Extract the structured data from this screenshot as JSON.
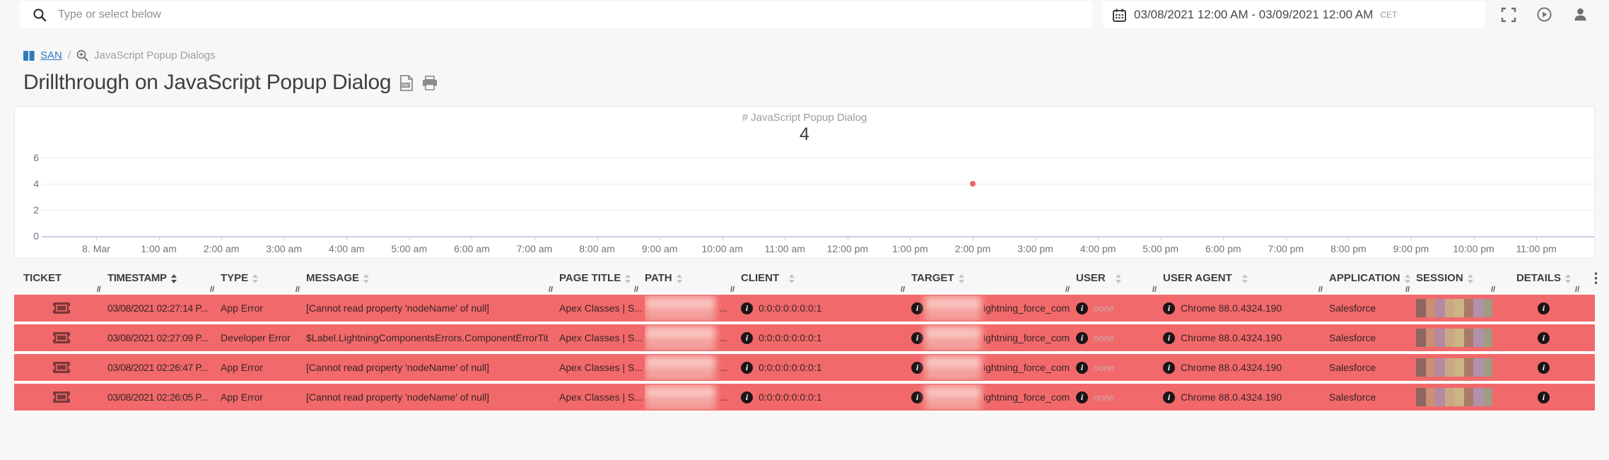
{
  "topbar": {
    "search_placeholder": "Type or select below",
    "date_range": "03/08/2021 12:00 AM - 03/09/2021 12:00 AM",
    "timezone": "CET"
  },
  "breadcrumb": {
    "dashboard_label": "SAN",
    "separator": "/",
    "current": "JavaScript Popup Dialogs"
  },
  "page": {
    "title": "Drillthrough on JavaScript Popup Dialog"
  },
  "chart_data": {
    "type": "scatter",
    "title": "# JavaScript Popup Dialog",
    "total": "4",
    "x_ticks": [
      "8. Mar",
      "1:00 am",
      "2:00 am",
      "3:00 am",
      "4:00 am",
      "5:00 am",
      "6:00 am",
      "7:00 am",
      "8:00 am",
      "9:00 am",
      "10:00 am",
      "11:00 am",
      "12:00 pm",
      "1:00 pm",
      "2:00 pm",
      "3:00 pm",
      "4:00 pm",
      "5:00 pm",
      "6:00 pm",
      "7:00 pm",
      "8:00 pm",
      "9:00 pm",
      "10:00 pm",
      "11:00 pm"
    ],
    "y_ticks": [
      6,
      4,
      2,
      0
    ],
    "ylim": [
      0,
      6
    ],
    "grid": true,
    "legend": "none",
    "points": [
      {
        "x": "2:00 pm",
        "y": 4
      }
    ],
    "point_color": "#f0605e"
  },
  "table": {
    "columns": [
      {
        "label": "TICKET",
        "sortable": false
      },
      {
        "label": "TIMESTAMP",
        "sortable": true,
        "sort": "desc"
      },
      {
        "label": "TYPE",
        "sortable": true
      },
      {
        "label": "MESSAGE",
        "sortable": true
      },
      {
        "label": "PAGE TITLE",
        "sortable": true
      },
      {
        "label": "PATH",
        "sortable": true
      },
      {
        "label": "CLIENT",
        "sortable": true
      },
      {
        "label": "TARGET",
        "sortable": true
      },
      {
        "label": "USER",
        "sortable": true
      },
      {
        "label": "USER AGENT",
        "sortable": true
      },
      {
        "label": "APPLICATION",
        "sortable": true
      },
      {
        "label": "SESSION",
        "sortable": true
      },
      {
        "label": "DETAILS",
        "sortable": true
      }
    ],
    "rows": [
      {
        "timestamp": "03/08/2021 02:27:14 P...",
        "type": "App Error",
        "message": "[Cannot read property 'nodeName' of null]",
        "page_title": "Apex Classes | S...",
        "path_suffix": "...",
        "client": "0:0:0:0:0:0:0:1",
        "target_suffix": "ightning_force_com",
        "user": "none",
        "user_agent": "Chrome 88.0.4324.190",
        "application": "Salesforce"
      },
      {
        "timestamp": "03/08/2021 02:27:09 P...",
        "type": "Developer Error",
        "message": "$Label.LightningComponentsErrors.ComponentErrorTit",
        "page_title": "Apex Classes | S...",
        "path_suffix": "...",
        "client": "0:0:0:0:0:0:0:1",
        "target_suffix": "ightning_force_com",
        "user": "none",
        "user_agent": "Chrome 88.0.4324.190",
        "application": "Salesforce"
      },
      {
        "timestamp": "03/08/2021 02:26:47 P...",
        "type": "App Error",
        "message": "[Cannot read property 'nodeName' of null]",
        "page_title": "Apex Classes | S...",
        "path_suffix": "...",
        "client": "0:0:0:0:0:0:0:1",
        "target_suffix": "ightning_force_com",
        "user": "none",
        "user_agent": "Chrome 88.0.4324.190",
        "application": "Salesforce"
      },
      {
        "timestamp": "03/08/2021 02:26:05 P...",
        "type": "App Error",
        "message": "[Cannot read property 'nodeName' of null]",
        "page_title": "Apex Classes | S...",
        "path_suffix": "...",
        "client": "0:0:0:0:0:0:0:1",
        "target_suffix": "ightning_force_com",
        "user": "none",
        "user_agent": "Chrome 88.0.4324.190",
        "application": "Salesforce"
      }
    ],
    "row_color": "#f1696a",
    "session_colors": [
      "#8d6662",
      "#cb8f74",
      "#b389a4",
      "#c9a985",
      "#cdb483",
      "#a97b67",
      "#b191ab",
      "#a29a86"
    ]
  }
}
